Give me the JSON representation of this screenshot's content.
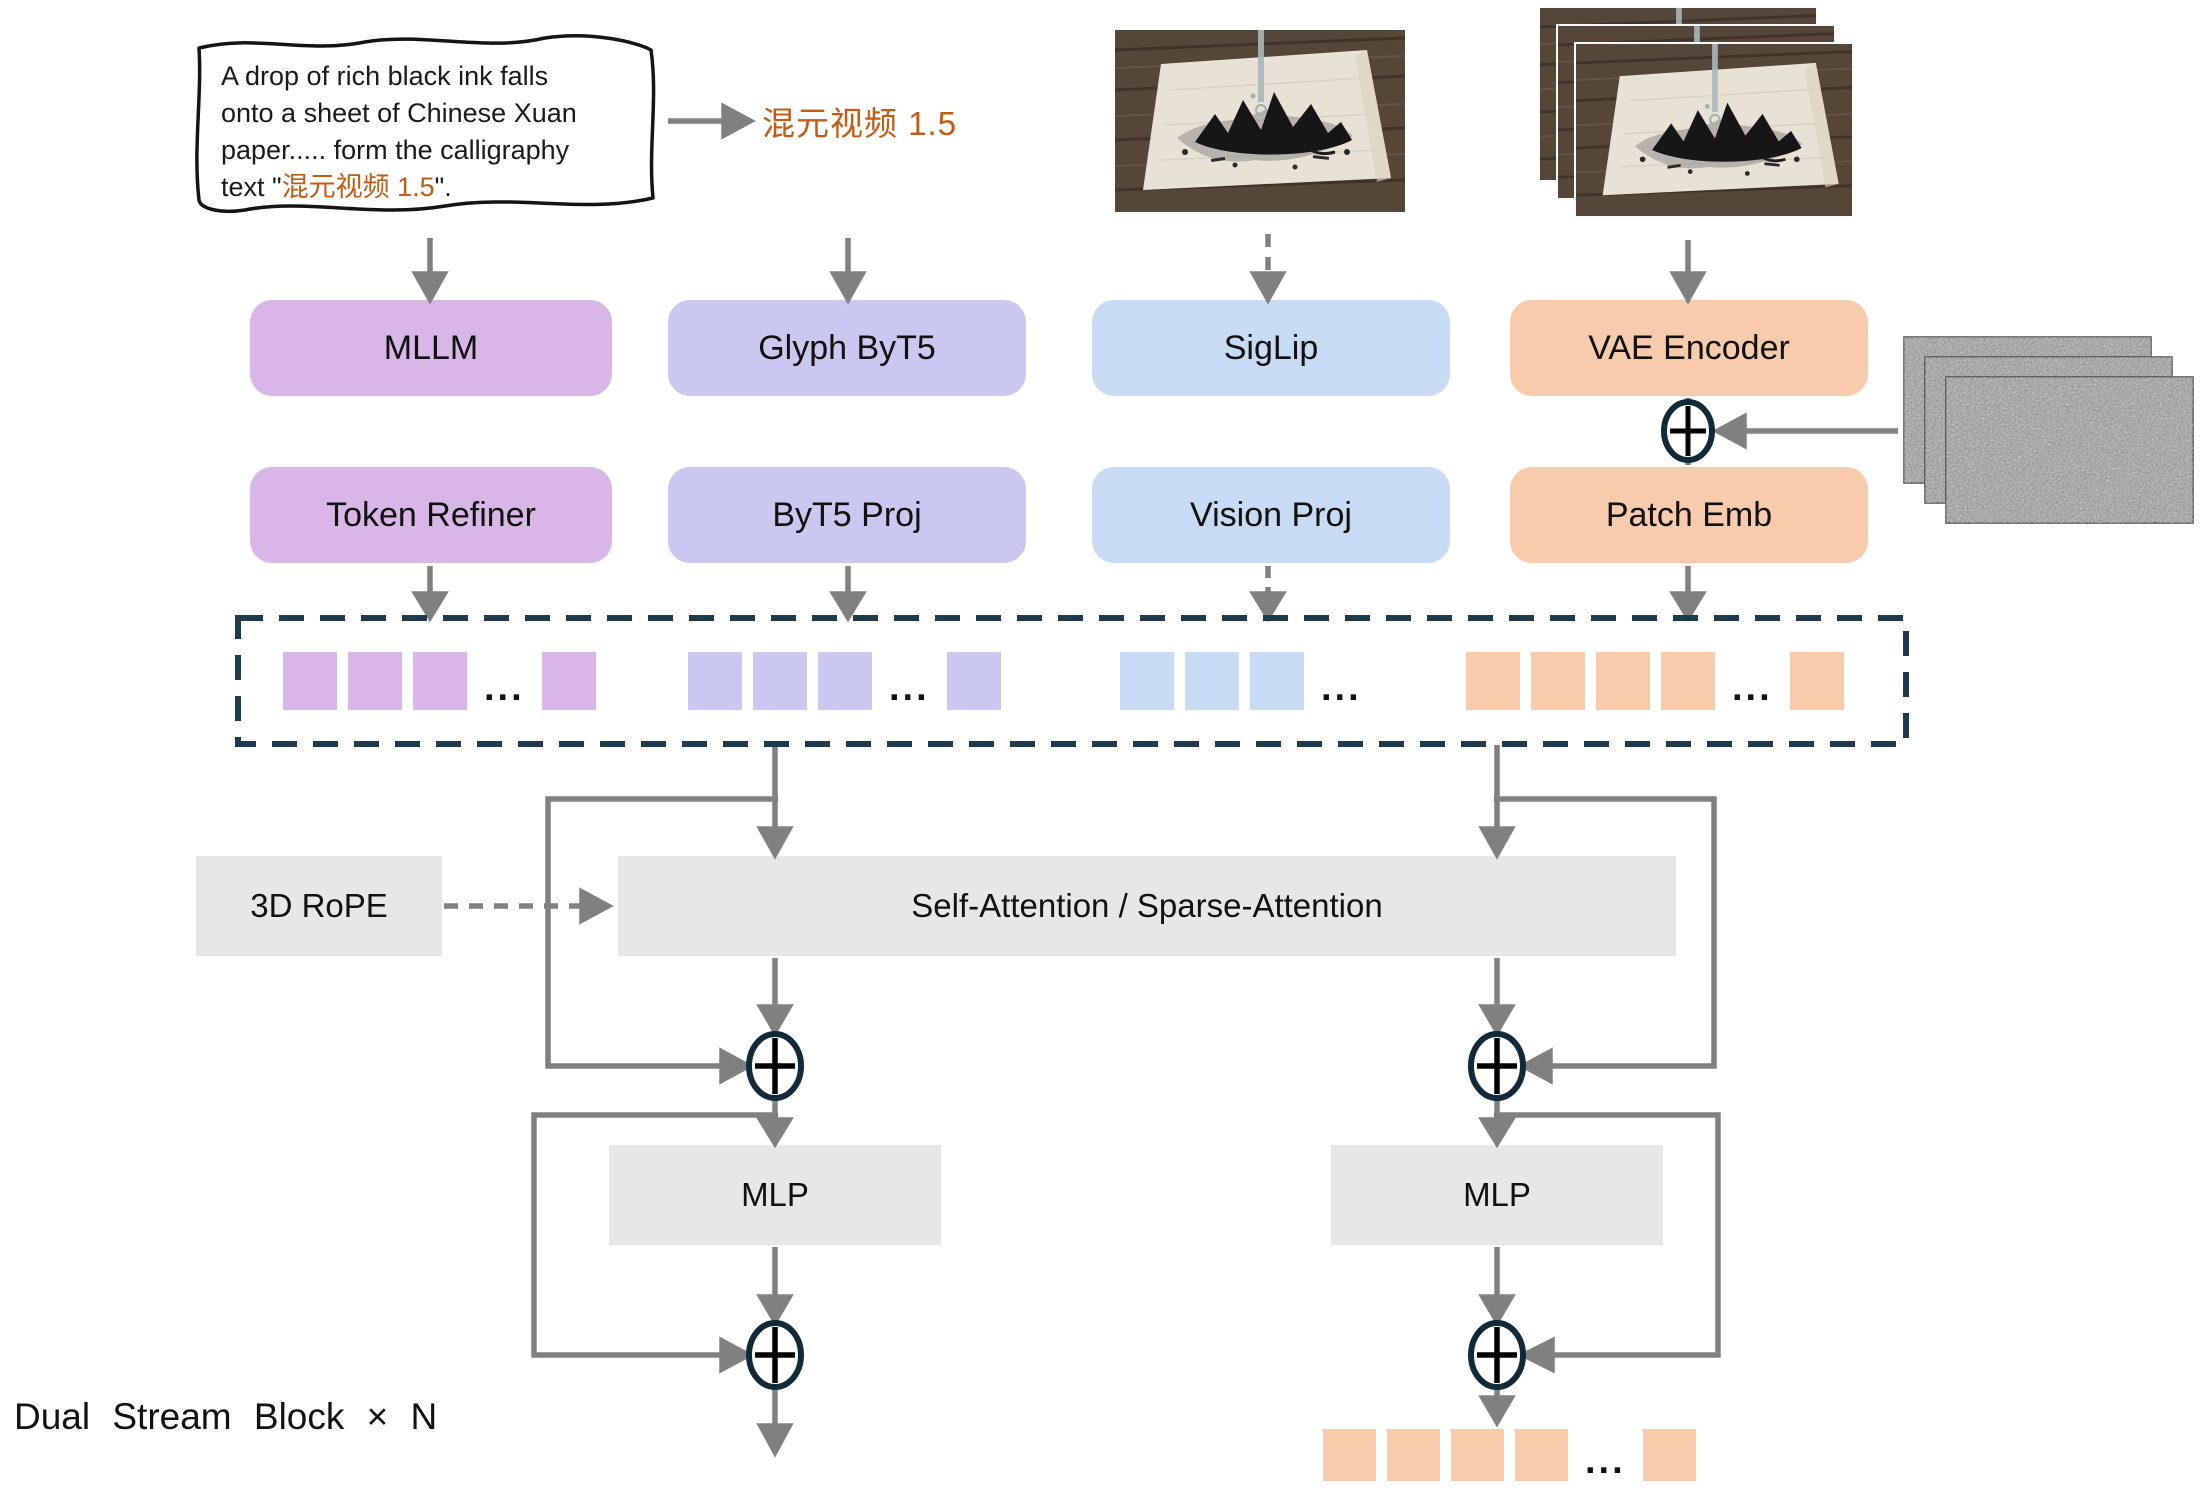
{
  "prompt_box": {
    "line1": "A drop of rich black ink falls",
    "line2": "onto a sheet of Chinese Xuan",
    "line3": "paper..... form the calligraphy",
    "line4_prefix": "text \"",
    "line4_highlight": "混元视频 1.5",
    "line4_suffix": "\"."
  },
  "glyph_label": "混元视频 1.5",
  "encoders": {
    "mllm": "MLLM",
    "glyph_byt5": "Glyph ByT5",
    "siglip": "SigLip",
    "vae_encoder": "VAE Encoder"
  },
  "projectors": {
    "token_refiner": "Token Refiner",
    "byt5_proj": "ByT5 Proj",
    "vision_proj": "Vision Proj",
    "patch_emb": "Patch Emb"
  },
  "transformer": {
    "rope_label": "3D RoPE",
    "attention_label": "Self-Attention / Sparse-Attention",
    "mlp_left_label": "MLP",
    "mlp_right_label": "MLP",
    "block_caption": "Dual Stream Block × N"
  },
  "ellipsis": "...",
  "token_groups": [
    {
      "name": "mllm-tokens",
      "color": "purple",
      "before": 3,
      "dots": true,
      "after": 1
    },
    {
      "name": "byt5-tokens",
      "color": "lavender",
      "before": 3,
      "dots": true,
      "after": 1
    },
    {
      "name": "vision-tokens",
      "color": "blue",
      "before": 3,
      "dots": true,
      "after": 0
    },
    {
      "name": "latent-tokens",
      "color": "peach",
      "before": 4,
      "dots": true,
      "after": 1
    },
    {
      "name": "output-tokens",
      "color": "peach",
      "before": 4,
      "dots": true,
      "after": 1
    }
  ],
  "colors": {
    "purple": "#d8b7e8",
    "lavender": "#cac7f0",
    "blue": "#c8dbf4",
    "peach": "#f8cbad",
    "gray_box": "#e8e7e7",
    "arrow_gray": "#808080",
    "dark_navy": "#1d3a4e",
    "orange_text": "#c55a11"
  }
}
